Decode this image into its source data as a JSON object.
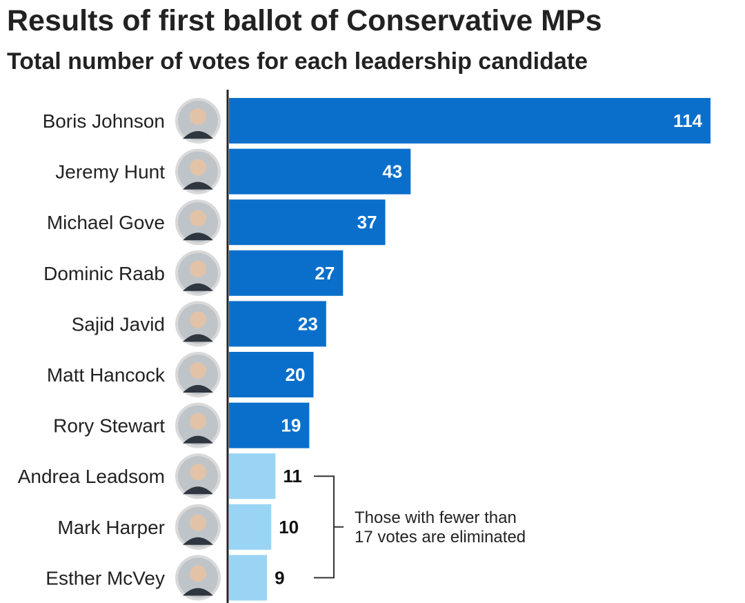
{
  "header": {
    "title": "Results of first ballot of Conservative MPs",
    "subtitle": "Total number of votes for each leadership candidate"
  },
  "colors": {
    "advancing": "#0a6fcb",
    "eliminated": "#9ad4f5",
    "axis": "#222222",
    "label_on_bar": "#ffffff",
    "label_off_bar": "#111111",
    "photo_ring": "#d9d9d9"
  },
  "chart_data": {
    "type": "bar",
    "orientation": "horizontal",
    "title": "Results of first ballot of Conservative MPs",
    "subtitle": "Total number of votes for each leadership candidate",
    "categories": [
      "Boris Johnson",
      "Jeremy Hunt",
      "Michael Gove",
      "Dominic Raab",
      "Sajid Javid",
      "Matt Hancock",
      "Rory Stewart",
      "Andrea Leadsom",
      "Mark Harper",
      "Esther McVey"
    ],
    "values": [
      114,
      43,
      37,
      27,
      23,
      20,
      19,
      11,
      10,
      9
    ],
    "status": [
      "advancing",
      "advancing",
      "advancing",
      "advancing",
      "advancing",
      "advancing",
      "advancing",
      "eliminated",
      "eliminated",
      "eliminated"
    ],
    "xlim": [
      0,
      114
    ],
    "grid": false,
    "legend": "none",
    "annotation": {
      "lines": [
        "Those with fewer than",
        "17 votes are eliminated"
      ],
      "applies_to": [
        "Andrea Leadsom",
        "Mark Harper",
        "Esther McVey"
      ]
    },
    "icons": [
      "candidate-photo"
    ]
  }
}
